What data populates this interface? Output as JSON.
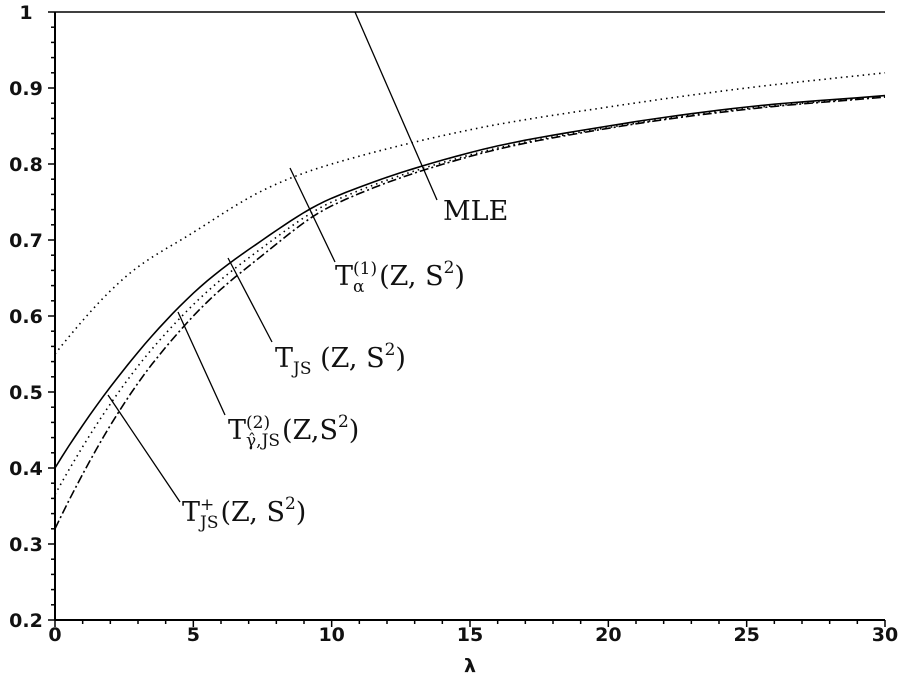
{
  "chart_data": {
    "type": "line",
    "title": "",
    "xlabel": "λ",
    "ylabel": "",
    "xlim": [
      0,
      30
    ],
    "ylim": [
      0.2,
      1
    ],
    "xticks": [
      "0",
      "5",
      "10",
      "15",
      "20",
      "25",
      "30"
    ],
    "yticks": [
      "0.2",
      "0.3",
      "0.4",
      "0.5",
      "0.6",
      "0.7",
      "0.8",
      "0.9",
      "1"
    ],
    "x": [
      0,
      2.5,
      5,
      7.5,
      10,
      15,
      20,
      25,
      30
    ],
    "series": [
      {
        "name": "MLE",
        "style": "solid",
        "values": [
          1,
          1,
          1,
          1,
          1,
          1,
          1,
          1,
          1
        ]
      },
      {
        "name": "T_α^(1)(Z,S²)",
        "style": "dotted",
        "values": [
          0.55,
          0.65,
          0.71,
          0.765,
          0.8,
          0.845,
          0.875,
          0.9,
          0.92
        ]
      },
      {
        "name": "T_JS(Z,S²)",
        "style": "solid",
        "values": [
          0.4,
          0.53,
          0.63,
          0.7,
          0.755,
          0.815,
          0.85,
          0.875,
          0.89
        ]
      },
      {
        "name": "T_γ̂,JS^(2)(Z,S²)",
        "style": "dotted",
        "values": [
          0.365,
          0.51,
          0.615,
          0.69,
          0.75,
          0.812,
          0.848,
          0.873,
          0.889
        ]
      },
      {
        "name": "T_JS^+(Z,S²)",
        "style": "dashed",
        "values": [
          0.32,
          0.485,
          0.6,
          0.68,
          0.745,
          0.81,
          0.847,
          0.872,
          0.888
        ]
      }
    ],
    "annotations": {
      "mle": {
        "text": "MLE"
      },
      "alpha": {
        "base": "T",
        "sub": "α",
        "sup": "(1)",
        "args": "(Z, S",
        "args_sup": "2",
        "close": ")"
      },
      "js": {
        "base": "T",
        "sub": "JS",
        "args": "(Z, S",
        "args_sup": "2",
        "close": ")"
      },
      "gamma": {
        "base": "T",
        "sub": "γ̂,JS",
        "sup": "(2)",
        "args": "(Z,S",
        "args_sup": "2",
        "close": ")"
      },
      "jsplus": {
        "base": "T",
        "sub": "JS",
        "sup": "+",
        "args": "(Z, S",
        "args_sup": "2",
        "close": ")"
      }
    }
  }
}
